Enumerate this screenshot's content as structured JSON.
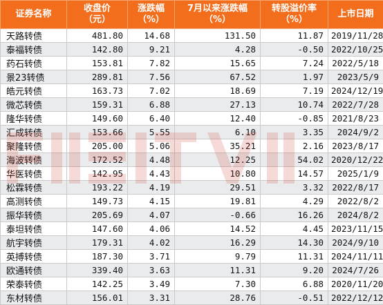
{
  "table": {
    "headers": [
      {
        "line1": "证券名称",
        "line2": ""
      },
      {
        "line1": "收盘价",
        "line2": "（元）"
      },
      {
        "line1": "涨跌幅",
        "line2": "（%）"
      },
      {
        "line1": "7月以来涨跌幅",
        "line2": "（%）"
      },
      {
        "line1": "转股溢价率",
        "line2": "（%）"
      },
      {
        "line1": "上市日期",
        "line2": ""
      }
    ],
    "rows": [
      [
        "天路转债",
        "481.80",
        "14.68",
        "131.50",
        "11.87",
        "2019/11/28"
      ],
      [
        "泰福转债",
        "142.80",
        "9.21",
        "4.28",
        "-0.50",
        "2022/10/25"
      ],
      [
        "药石转债",
        "153.81",
        "7.82",
        "15.65",
        "7.24",
        "2022/5/18"
      ],
      [
        "景23转债",
        "289.81",
        "7.56",
        "67.52",
        "1.97",
        "2023/5/9"
      ],
      [
        "皓元转债",
        "163.73",
        "7.02",
        "18.69",
        "7.19",
        "2024/12/19"
      ],
      [
        "微芯转债",
        "159.31",
        "6.88",
        "27.13",
        "10.74",
        "2022/7/28"
      ],
      [
        "隆华转债",
        "149.60",
        "6.40",
        "12.40",
        "-0.85",
        "2021/8/23"
      ],
      [
        "汇成转债",
        "153.66",
        "5.55",
        "6.10",
        "3.35",
        "2024/9/2"
      ],
      [
        "聚隆转债",
        "205.00",
        "5.06",
        "35.21",
        "2.16",
        "2023/8/17"
      ],
      [
        "海波转债",
        "172.52",
        "4.48",
        "12.25",
        "54.02",
        "2020/12/22"
      ],
      [
        "华医转债",
        "142.95",
        "4.43",
        "10.80",
        "14.57",
        "2025/1/9"
      ],
      [
        "松霖转债",
        "193.22",
        "4.19",
        "29.51",
        "3.32",
        "2022/8/17"
      ],
      [
        "高测转债",
        "149.73",
        "4.15",
        "19.81",
        "4.29",
        "2022/8/2"
      ],
      [
        "振华转债",
        "205.69",
        "4.07",
        "-0.66",
        "16.26",
        "2024/8/2"
      ],
      [
        "泰坦转债",
        "147.60",
        "4.06",
        "14.52",
        "4.45",
        "2023/11/15"
      ],
      [
        "航宇转债",
        "179.31",
        "4.02",
        "16.29",
        "14.30",
        "2024/9/10"
      ],
      [
        "英搏转债",
        "187.30",
        "3.71",
        "9.79",
        "11.31",
        "2024/11/11"
      ],
      [
        "欧通转债",
        "339.40",
        "3.63",
        "11.31",
        "9.20",
        "2024/7/26"
      ],
      [
        "荣泰转债",
        "142.25",
        "3.49",
        "7.30",
        "6.88",
        "2020/11/20"
      ],
      [
        "东材转债",
        "156.01",
        "3.31",
        "28.76",
        "-0.51",
        "2022/12/12"
      ]
    ]
  },
  "watermark": {
    "icon": "watermark-logo"
  },
  "colors": {
    "header_bg": "#f36e1c",
    "header_text": "#ffffff",
    "stripe_bg": "#e9ebed",
    "border": "#c9c9c9"
  }
}
